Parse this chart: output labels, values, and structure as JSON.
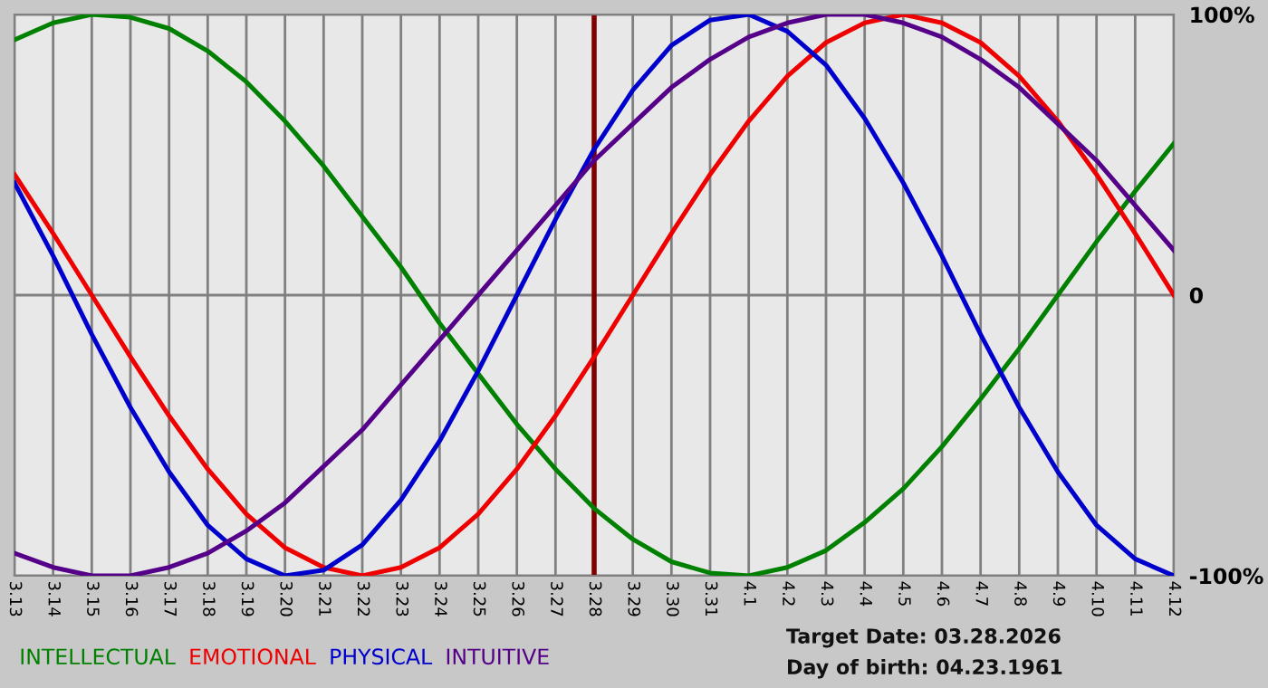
{
  "chart_data": {
    "type": "line",
    "categories": [
      "3.13",
      "3.14",
      "3.15",
      "3.16",
      "3.17",
      "3.18",
      "3.19",
      "3.20",
      "3.21",
      "3.22",
      "3.23",
      "3.24",
      "3.25",
      "3.26",
      "3.27",
      "3.28",
      "3.29",
      "3.30",
      "3.31",
      "4.1",
      "4.2",
      "4.3",
      "4.4",
      "4.5",
      "4.6",
      "4.7",
      "4.8",
      "4.9",
      "4.10",
      "4.11",
      "4.12"
    ],
    "series": [
      {
        "name": "INTELLECTUAL",
        "color": "#008000",
        "values": [
          91,
          97,
          100,
          99,
          95,
          87,
          76,
          62,
          46,
          28,
          10,
          -10,
          -28,
          -46,
          -62,
          -76,
          -87,
          -95,
          -99,
          -100,
          -97,
          -91,
          -81,
          -69,
          -54,
          -37,
          -19,
          0,
          19,
          37,
          54
        ]
      },
      {
        "name": "EMOTIONAL",
        "color": "#ee0000",
        "values": [
          43,
          22,
          0,
          -22,
          -43,
          -62,
          -78,
          -90,
          -97,
          -100,
          -97,
          -90,
          -78,
          -62,
          -43,
          -22,
          0,
          22,
          43,
          62,
          78,
          90,
          97,
          100,
          97,
          90,
          78,
          62,
          43,
          22,
          0
        ]
      },
      {
        "name": "PHYSICAL",
        "color": "#0000cc",
        "values": [
          40,
          14,
          -14,
          -40,
          -63,
          -82,
          -94,
          -100,
          -98,
          -89,
          -73,
          -52,
          -27,
          0,
          27,
          52,
          73,
          89,
          98,
          100,
          94,
          82,
          63,
          40,
          14,
          -14,
          -40,
          -63,
          -82,
          -94,
          -100
        ]
      },
      {
        "name": "INTUITIVE",
        "color": "#550088",
        "values": [
          -92,
          -97,
          -100,
          -100,
          -97,
          -92,
          -84,
          -74,
          -61,
          -48,
          -32,
          -16,
          0,
          16,
          32,
          48,
          61,
          74,
          84,
          92,
          97,
          100,
          100,
          97,
          92,
          84,
          74,
          61,
          48,
          32,
          16
        ]
      }
    ],
    "ylim": [
      -100,
      100
    ],
    "yticks": [
      {
        "value": 100,
        "label": "100%"
      },
      0,
      {
        "value": -100,
        "label": "-100%"
      }
    ],
    "ref_lines": [
      {
        "axis": "x",
        "value": "3.28",
        "color": "#800000"
      }
    ],
    "annotations": [
      "Target Date: 03.28.2026",
      "Day of birth: 04.23.1961"
    ],
    "grid": true,
    "legend": "bottom left",
    "marker": "none",
    "line_style": "solid"
  }
}
